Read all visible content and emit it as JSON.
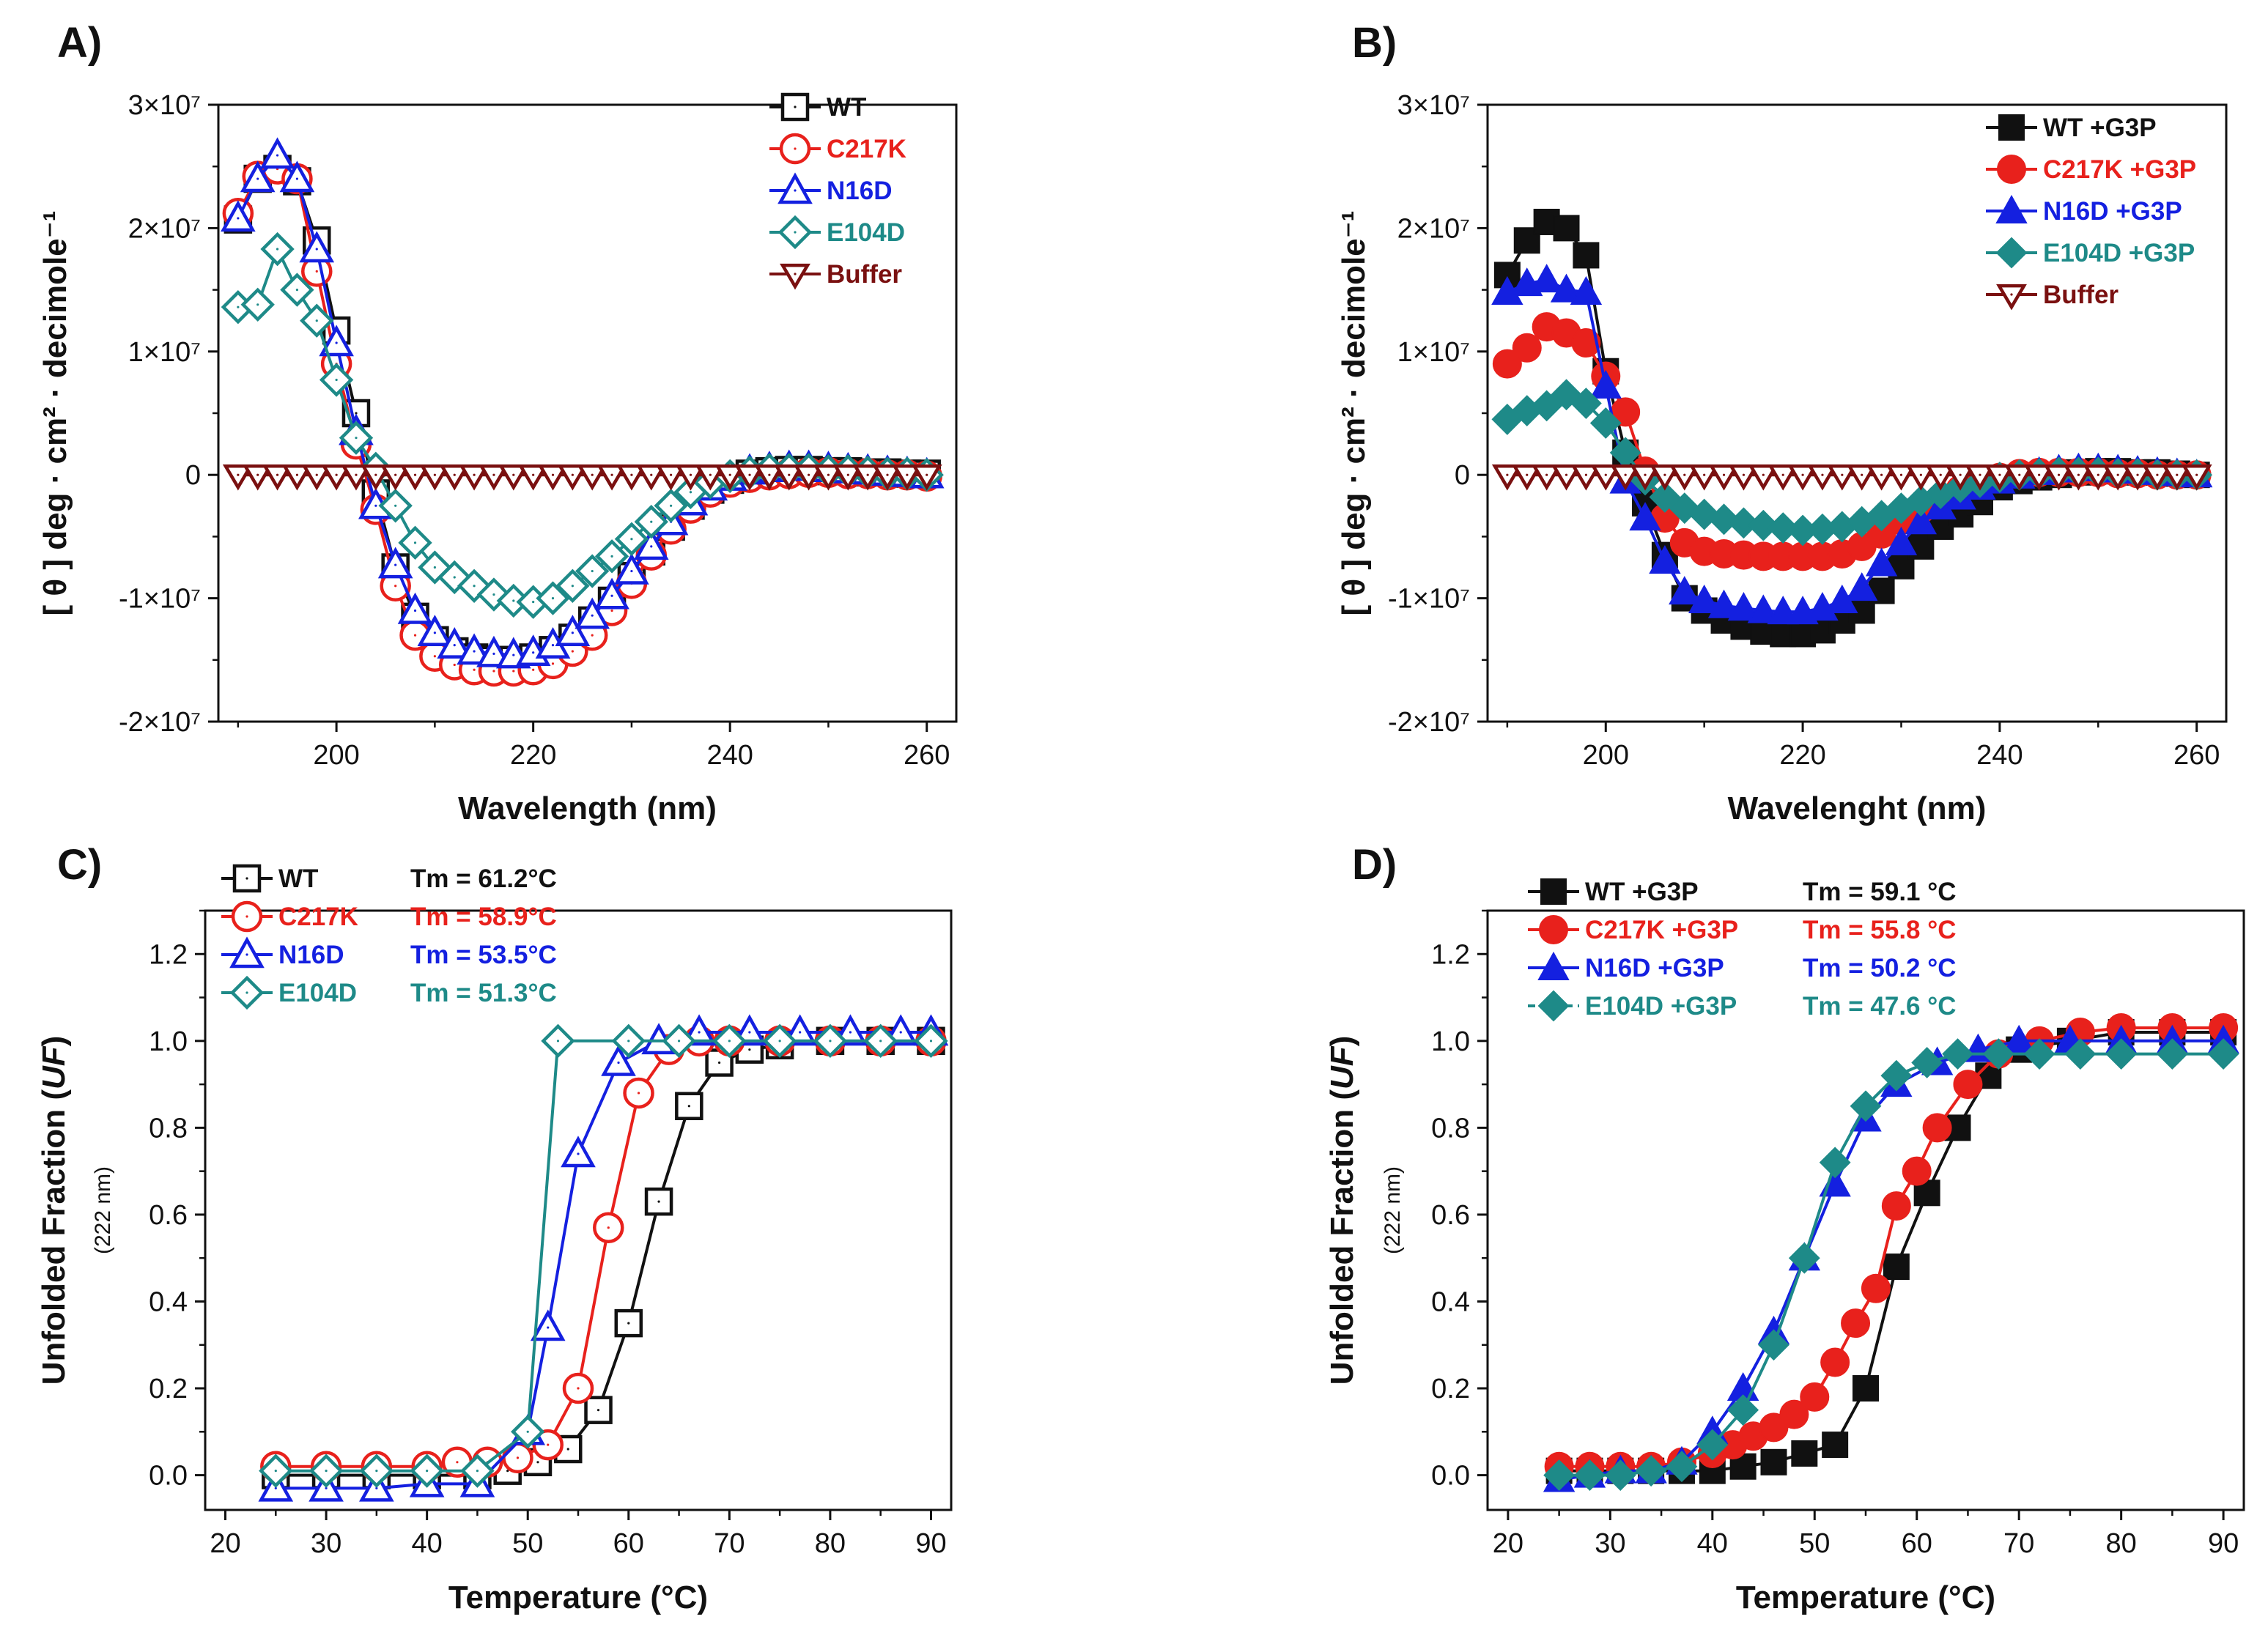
{
  "chart_data": [
    {
      "panel": "A)",
      "type": "line",
      "xlabel": "Wavelength (nm)",
      "ylabel": "[ θ ] deg · cm² · decimole⁻¹",
      "xlim": [
        188,
        263
      ],
      "ylim": [
        -20000000,
        30000000
      ],
      "xticks": [
        200,
        220,
        240,
        260
      ],
      "xtick_labels": [
        "200",
        "220",
        "240",
        "260"
      ],
      "yticks": [
        -20000000,
        -10000000,
        0,
        10000000,
        20000000,
        30000000
      ],
      "ytick_labels": [
        "-2×10⁷",
        "-1×10⁷",
        "0",
        "1×10⁷",
        "2×10⁷",
        "3×10⁷"
      ],
      "x": [
        190,
        192,
        194,
        196,
        198,
        200,
        202,
        204,
        206,
        208,
        210,
        212,
        214,
        216,
        218,
        220,
        222,
        224,
        226,
        228,
        230,
        232,
        234,
        236,
        238,
        240,
        242,
        244,
        246,
        248,
        250,
        252,
        254,
        256,
        258,
        260
      ],
      "series": [
        {
          "name": "WT",
          "color": "#111111",
          "marker": "square-open",
          "values": [
            20700000,
            24000000,
            24800000,
            23800000,
            19000000,
            11700000,
            5000000,
            -1500000,
            -7500000,
            -11500000,
            -13400000,
            -14300000,
            -14800000,
            -15000000,
            -15000000,
            -14800000,
            -14200000,
            -13200000,
            -11800000,
            -10200000,
            -8200000,
            -6200000,
            -4200000,
            -2500000,
            -1200000,
            -400000,
            100000,
            300000,
            400000,
            400000,
            300000,
            300000,
            200000,
            200000,
            100000,
            100000
          ]
        },
        {
          "name": "C217K",
          "color": "#e8211c",
          "marker": "circle-open",
          "values": [
            21200000,
            24200000,
            24800000,
            24000000,
            16500000,
            9000000,
            2500000,
            -2800000,
            -9000000,
            -13000000,
            -14700000,
            -15400000,
            -15800000,
            -15900000,
            -15900000,
            -15800000,
            -15300000,
            -14300000,
            -13000000,
            -11000000,
            -8800000,
            -6500000,
            -4400000,
            -2700000,
            -1400000,
            -600000,
            -200000,
            0,
            100000,
            200000,
            200000,
            100000,
            100000,
            0,
            0,
            -100000
          ]
        },
        {
          "name": "N16D",
          "color": "#1420e0",
          "marker": "triangle-open",
          "values": [
            20800000,
            24000000,
            25900000,
            24000000,
            18300000,
            10700000,
            3500000,
            -2500000,
            -7300000,
            -11000000,
            -12800000,
            -13800000,
            -14300000,
            -14500000,
            -14600000,
            -14400000,
            -13800000,
            -12800000,
            -11400000,
            -9800000,
            -7800000,
            -5800000,
            -3800000,
            -2200000,
            -1000000,
            -200000,
            300000,
            500000,
            600000,
            600000,
            500000,
            400000,
            300000,
            200000,
            100000,
            0
          ]
        },
        {
          "name": "E104D",
          "color": "#1e8a88",
          "marker": "diamond-open",
          "values": [
            13600000,
            13800000,
            18300000,
            15000000,
            12500000,
            7700000,
            3000000,
            500000,
            -2500000,
            -5500000,
            -7500000,
            -8300000,
            -9000000,
            -9700000,
            -10200000,
            -10300000,
            -10000000,
            -9000000,
            -7800000,
            -6600000,
            -5200000,
            -3800000,
            -2500000,
            -1400000,
            -600000,
            -100000,
            200000,
            400000,
            400000,
            400000,
            300000,
            300000,
            200000,
            100000,
            100000,
            0
          ]
        },
        {
          "name": "Buffer",
          "color": "#7a1010",
          "marker": "triangle-down-open",
          "values": [
            0,
            0,
            0,
            0,
            0,
            0,
            0,
            0,
            0,
            0,
            0,
            0,
            0,
            0,
            0,
            0,
            0,
            0,
            0,
            0,
            0,
            0,
            0,
            0,
            0,
            0,
            0,
            0,
            0,
            0,
            0,
            0,
            0,
            0,
            0,
            0
          ]
        }
      ]
    },
    {
      "panel": "B)",
      "type": "line",
      "xlabel": "Wavelenght (nm)",
      "ylabel": "[ θ ] deg · cm² · decimole⁻¹",
      "xlim": [
        188,
        263
      ],
      "ylim": [
        -20000000,
        30000000
      ],
      "xticks": [
        200,
        220,
        240,
        260
      ],
      "xtick_labels": [
        "200",
        "220",
        "240",
        "260"
      ],
      "yticks": [
        -20000000,
        -10000000,
        0,
        10000000,
        20000000,
        30000000
      ],
      "ytick_labels": [
        "-2×10⁷",
        "-1×10⁷",
        "0",
        "1×10⁷",
        "2×10⁷",
        "3×10⁷"
      ],
      "x": [
        190,
        192,
        194,
        196,
        198,
        200,
        202,
        204,
        206,
        208,
        210,
        212,
        214,
        216,
        218,
        220,
        222,
        224,
        226,
        228,
        230,
        232,
        234,
        236,
        238,
        240,
        242,
        244,
        246,
        248,
        250,
        252,
        254,
        256,
        258,
        260
      ],
      "series": [
        {
          "name": "WT +G3P",
          "color": "#111111",
          "marker": "square-filled",
          "values": [
            16200000,
            19000000,
            20500000,
            20000000,
            17800000,
            8400000,
            1800000,
            -2300000,
            -6500000,
            -10000000,
            -11000000,
            -11800000,
            -12300000,
            -12700000,
            -12900000,
            -12900000,
            -12600000,
            -11800000,
            -11000000,
            -9400000,
            -7400000,
            -5800000,
            -4200000,
            -3200000,
            -2200000,
            -1000000,
            -500000,
            -200000,
            0,
            200000,
            300000,
            300000,
            200000,
            200000,
            100000,
            0
          ]
        },
        {
          "name": "C217K +G3P",
          "color": "#e8211c",
          "marker": "circle-filled",
          "values": [
            9000000,
            10300000,
            12000000,
            11500000,
            10700000,
            8000000,
            5100000,
            300000,
            -3500000,
            -5500000,
            -6200000,
            -6400000,
            -6500000,
            -6600000,
            -6600000,
            -6600000,
            -6600000,
            -6400000,
            -5800000,
            -4800000,
            -3700000,
            -2800000,
            -1900000,
            -1200000,
            -700000,
            -200000,
            100000,
            200000,
            200000,
            200000,
            200000,
            100000,
            100000,
            0,
            0,
            0
          ]
        },
        {
          "name": "N16D +G3P",
          "color": "#1420e0",
          "marker": "triangle-filled",
          "values": [
            14800000,
            15500000,
            15800000,
            15000000,
            14800000,
            7200000,
            -500000,
            -3500000,
            -7000000,
            -9500000,
            -10200000,
            -10600000,
            -10800000,
            -11000000,
            -11100000,
            -11100000,
            -10800000,
            -10200000,
            -9200000,
            -7200000,
            -5500000,
            -3800000,
            -2600000,
            -1800000,
            -1000000,
            -500000,
            -100000,
            200000,
            400000,
            500000,
            500000,
            400000,
            300000,
            200000,
            100000,
            0
          ]
        },
        {
          "name": "E104D +G3P",
          "color": "#1e8a88",
          "marker": "diamond-filled",
          "values": [
            4500000,
            5200000,
            5600000,
            6500000,
            5800000,
            4200000,
            1800000,
            -400000,
            -1800000,
            -2700000,
            -3200000,
            -3600000,
            -3900000,
            -4100000,
            -4300000,
            -4500000,
            -4400000,
            -4200000,
            -3800000,
            -3300000,
            -2700000,
            -2100000,
            -1500000,
            -1000000,
            -600000,
            -200000,
            0,
            100000,
            200000,
            200000,
            200000,
            100000,
            100000,
            0,
            0,
            0
          ]
        },
        {
          "name": "Buffer",
          "color": "#7a1010",
          "marker": "triangle-down-open",
          "values": [
            0,
            0,
            0,
            0,
            0,
            0,
            0,
            0,
            0,
            0,
            0,
            0,
            0,
            0,
            0,
            0,
            0,
            0,
            0,
            0,
            0,
            0,
            0,
            0,
            0,
            0,
            0,
            0,
            0,
            0,
            0,
            0,
            0,
            0,
            0,
            0
          ]
        }
      ]
    },
    {
      "panel": "C)",
      "type": "line",
      "xlabel": "Temperature (°C)",
      "ylabel": "Unfolded Fraction (UF)",
      "ylabel_sub": "(222 nm)",
      "xlim": [
        18,
        92
      ],
      "ylim": [
        -0.08,
        1.3
      ],
      "xticks": [
        20,
        30,
        40,
        50,
        60,
        70,
        80,
        90
      ],
      "xtick_labels": [
        "20",
        "30",
        "40",
        "50",
        "60",
        "70",
        "80",
        "90"
      ],
      "yticks": [
        0,
        0.2,
        0.4,
        0.6,
        0.8,
        1.0,
        1.2
      ],
      "ytick_labels": [
        "0.0",
        "0.2",
        "0.4",
        "0.6",
        "0.8",
        "1.0",
        "1.2"
      ],
      "series": [
        {
          "name": "WT",
          "tm_label": "Tm = 61.2°C",
          "color": "#111111",
          "marker": "square-open",
          "x": [
            25,
            30,
            35,
            40,
            45,
            48,
            51,
            54,
            57,
            60,
            63,
            66,
            69,
            72,
            75,
            80,
            85,
            90
          ],
          "values": [
            0,
            0,
            0,
            0,
            0,
            0.01,
            0.03,
            0.06,
            0.15,
            0.35,
            0.63,
            0.85,
            0.95,
            0.98,
            0.99,
            1.0,
            1.0,
            1.0
          ]
        },
        {
          "name": "C217K",
          "tm_label": "Tm = 58.9°C",
          "color": "#e8211c",
          "marker": "circle-open",
          "x": [
            25,
            30,
            35,
            40,
            43,
            46,
            49,
            52,
            55,
            58,
            61,
            64,
            67,
            70,
            75,
            80,
            85,
            90
          ],
          "values": [
            0.02,
            0.02,
            0.02,
            0.02,
            0.03,
            0.03,
            0.04,
            0.07,
            0.2,
            0.57,
            0.88,
            0.98,
            1.0,
            1.0,
            1.0,
            1.0,
            1.0,
            1.0
          ]
        },
        {
          "name": "N16D",
          "tm_label": "Tm = 53.5°C",
          "color": "#1420e0",
          "marker": "triangle-open",
          "x": [
            25,
            30,
            35,
            40,
            45,
            50,
            52,
            55,
            59,
            63,
            67,
            72,
            77,
            82,
            87,
            90
          ],
          "values": [
            -0.03,
            -0.03,
            -0.03,
            -0.02,
            -0.02,
            0.1,
            0.34,
            0.74,
            0.95,
            1.0,
            1.02,
            1.02,
            1.02,
            1.02,
            1.02,
            1.02
          ]
        },
        {
          "name": "E104D",
          "tm_label": "Tm = 51.3°C",
          "color": "#1e8a88",
          "marker": "diamond-open",
          "x": [
            25,
            30,
            35,
            40,
            45,
            50,
            53,
            60,
            65,
            70,
            75,
            80,
            85,
            90
          ],
          "values": [
            0.01,
            0.01,
            0.01,
            0.01,
            0.01,
            0.1,
            1.0,
            1.0,
            1.0,
            1.0,
            1.0,
            1.0,
            1.0,
            1.0
          ]
        }
      ]
    },
    {
      "panel": "D)",
      "type": "line",
      "xlabel": "Temperature (°C)",
      "ylabel": "Unfolded Fraction (UF)",
      "ylabel_sub": "(222 nm)",
      "xlim": [
        18,
        92
      ],
      "ylim": [
        -0.08,
        1.3
      ],
      "xticks": [
        20,
        30,
        40,
        50,
        60,
        70,
        80,
        90
      ],
      "xtick_labels": [
        "20",
        "30",
        "40",
        "50",
        "60",
        "70",
        "80",
        "90"
      ],
      "yticks": [
        0,
        0.2,
        0.4,
        0.6,
        0.8,
        1.0,
        1.2
      ],
      "ytick_labels": [
        "0.0",
        "0.2",
        "0.4",
        "0.6",
        "0.8",
        "1.0",
        "1.2"
      ],
      "series": [
        {
          "name": "WT +G3P",
          "tm_label": "Tm = 59.1 °C",
          "color": "#111111",
          "marker": "square-filled",
          "x": [
            25,
            28,
            31,
            34,
            37,
            40,
            43,
            46,
            49,
            52,
            55,
            58,
            61,
            64,
            67,
            70,
            75,
            80,
            85,
            90
          ],
          "values": [
            0.01,
            0.01,
            0.01,
            0.01,
            0.01,
            0.01,
            0.02,
            0.03,
            0.05,
            0.07,
            0.2,
            0.48,
            0.65,
            0.8,
            0.92,
            0.98,
            1.0,
            1.02,
            1.02,
            1.02
          ]
        },
        {
          "name": "C217K +G3P",
          "tm_label": "Tm = 55.8 °C",
          "color": "#e8211c",
          "marker": "circle-filled",
          "x": [
            25,
            28,
            31,
            34,
            37,
            40,
            42,
            44,
            46,
            48,
            50,
            52,
            54,
            56,
            58,
            60,
            62,
            65,
            68,
            72,
            76,
            80,
            85,
            90
          ],
          "values": [
            0.02,
            0.02,
            0.02,
            0.02,
            0.03,
            0.05,
            0.07,
            0.09,
            0.11,
            0.14,
            0.18,
            0.26,
            0.35,
            0.43,
            0.62,
            0.7,
            0.8,
            0.9,
            0.97,
            1.0,
            1.02,
            1.03,
            1.03,
            1.03
          ]
        },
        {
          "name": "N16D +G3P",
          "tm_label": "Tm = 50.2 °C",
          "color": "#1420e0",
          "marker": "triangle-filled",
          "x": [
            25,
            28,
            31,
            34,
            37,
            40,
            43,
            46,
            49,
            52,
            55,
            58,
            62,
            66,
            70,
            75,
            80,
            85,
            90
          ],
          "values": [
            -0.01,
            0,
            0.01,
            0.01,
            0.03,
            0.1,
            0.2,
            0.33,
            0.5,
            0.67,
            0.82,
            0.9,
            0.95,
            0.98,
            1.0,
            1.0,
            1.0,
            1.0,
            1.0
          ]
        },
        {
          "name": "E104D +G3P",
          "tm_label": "Tm = 47.6 °C",
          "color": "#1e8a88",
          "marker": "diamond-filled",
          "x": [
            25,
            28,
            31,
            34,
            37,
            40,
            43,
            46,
            49,
            52,
            55,
            58,
            61,
            64,
            68,
            72,
            76,
            80,
            85,
            90
          ],
          "values": [
            0,
            0,
            0,
            0.01,
            0.02,
            0.07,
            0.15,
            0.3,
            0.5,
            0.72,
            0.85,
            0.92,
            0.95,
            0.97,
            0.97,
            0.97,
            0.97,
            0.97,
            0.97,
            0.97
          ]
        }
      ]
    }
  ]
}
